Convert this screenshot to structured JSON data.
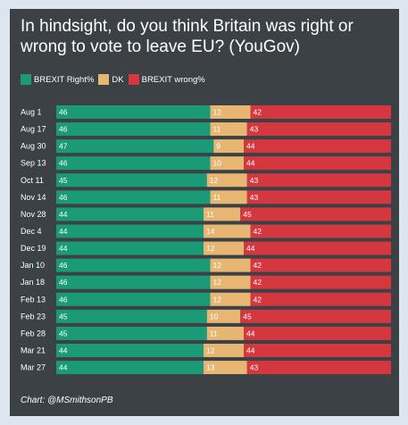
{
  "title": "In hindsight, do you think Britain was right or wrong to vote to leave EU? (YouGov)",
  "legend": [
    {
      "label": "BREXIT Right%",
      "color": "#1b9a77"
    },
    {
      "label": "DK",
      "color": "#e7b672"
    },
    {
      "label": "BREXIT wrong%",
      "color": "#d5373f"
    }
  ],
  "footer": "Chart: @MSmithsonPB",
  "chart_data": {
    "type": "bar",
    "orientation": "horizontal",
    "stacked": true,
    "categories": [
      "Aug 1",
      "Aug 17",
      "Aug 30",
      "Sep 13",
      "Oct 11",
      "Nov 14",
      "Nov 28",
      "Dec 4",
      "Dec 19",
      "Jan 10",
      "Jan 18",
      "Feb 13",
      "Feb 23",
      "Feb 28",
      "Mar 21",
      "Mar 27"
    ],
    "series": [
      {
        "name": "BREXIT Right%",
        "color": "#1b9a77",
        "values": [
          46,
          46,
          47,
          46,
          45,
          46,
          44,
          44,
          44,
          46,
          46,
          46,
          45,
          45,
          44,
          44
        ]
      },
      {
        "name": "DK",
        "color": "#e7b672",
        "values": [
          12,
          11,
          9,
          10,
          12,
          11,
          11,
          14,
          12,
          12,
          12,
          12,
          10,
          11,
          12,
          13
        ]
      },
      {
        "name": "BREXIT wrong%",
        "color": "#d5373f",
        "values": [
          42,
          43,
          44,
          44,
          43,
          43,
          45,
          42,
          44,
          42,
          42,
          42,
          45,
          44,
          44,
          43
        ]
      }
    ],
    "xlim": [
      0,
      100
    ],
    "grid": false,
    "legend_position": "top-left"
  }
}
